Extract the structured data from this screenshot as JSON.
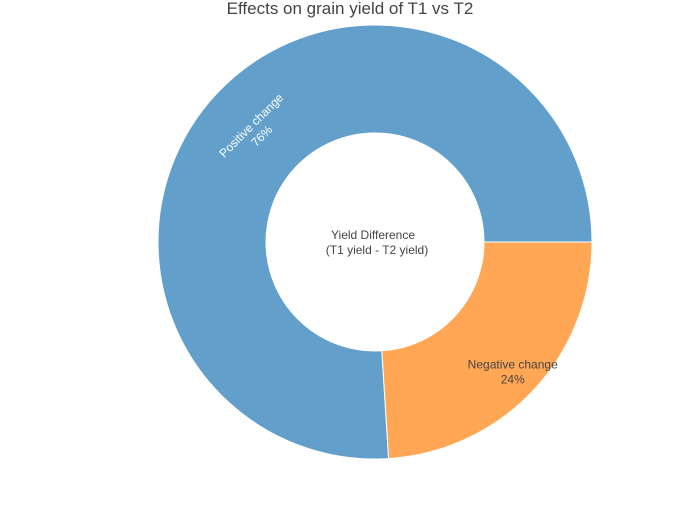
{
  "chart_data": {
    "type": "pie",
    "hole": true,
    "title": "Effects on grain yield of T1 vs T2",
    "center_label": [
      "Yield Difference",
      "(T1 yield - T2 yield)"
    ],
    "slices": [
      {
        "label": "Positive change",
        "value": 76,
        "value_text": "76%",
        "color": "#62a0cb"
      },
      {
        "label": "Negative change",
        "value": 24,
        "value_text": "24%",
        "color": "#ffa755"
      }
    ],
    "text_colors": {
      "inside_light": "#ffffff",
      "inside_dark": "#444444"
    }
  }
}
